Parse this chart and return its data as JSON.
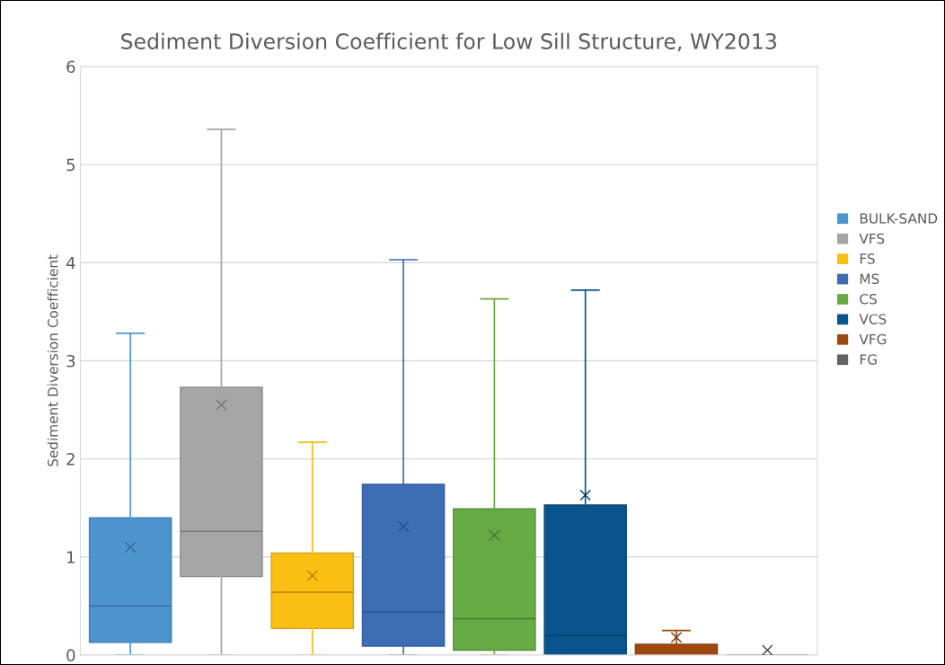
{
  "chart_data": {
    "type": "box",
    "title": "Sediment Diversion Coefficient for Low Sill Structure, WY2013",
    "ylabel": "Sediment Diversion Coefficient",
    "categories": [
      null
    ],
    "ylim": [
      0,
      6
    ],
    "yticks": [
      0,
      1,
      2,
      3,
      4,
      5,
      6
    ],
    "grid": "y",
    "legend": "right",
    "marker": "cross",
    "series": [
      {
        "name": "BULK-SAND",
        "color": "#4e95d0",
        "boxes": [
          {
            "low": 0,
            "q1": 0.13,
            "median": 0.5,
            "q3": 1.4,
            "high": 3.28,
            "mean": 1.1
          }
        ]
      },
      {
        "name": "VFS",
        "color": "#a5a5a5",
        "boxes": [
          {
            "low": 0,
            "q1": 0.8,
            "median": 1.26,
            "q3": 2.73,
            "high": 5.36,
            "mean": 2.55
          }
        ]
      },
      {
        "name": "FS",
        "color": "#fbbf14",
        "boxes": [
          {
            "low": 0,
            "q1": 0.27,
            "median": 0.64,
            "q3": 1.04,
            "high": 2.17,
            "mean": 0.81
          }
        ]
      },
      {
        "name": "MS",
        "color": "#3d6db5",
        "boxes": [
          {
            "low": 0,
            "q1": 0.09,
            "median": 0.44,
            "q3": 1.74,
            "high": 4.03,
            "mean": 1.31
          }
        ]
      },
      {
        "name": "CS",
        "color": "#66aa44",
        "boxes": [
          {
            "low": 0,
            "q1": 0.05,
            "median": 0.37,
            "q3": 1.49,
            "high": 3.63,
            "mean": 1.22
          }
        ]
      },
      {
        "name": "VCS",
        "color": "#08548c",
        "boxes": [
          {
            "low": 0,
            "q1": 0,
            "median": 0.2,
            "q3": 1.53,
            "high": 3.72,
            "mean": 1.63
          }
        ]
      },
      {
        "name": "VFG",
        "color": "#9e480e",
        "boxes": [
          {
            "low": 0,
            "q1": 0,
            "median": 0,
            "q3": 0.11,
            "high": 0.25,
            "mean": 0.18
          }
        ]
      },
      {
        "name": "FG",
        "color": "#636363",
        "boxes": [
          {
            "low": 0,
            "q1": 0,
            "median": 0,
            "q3": 0,
            "high": 0,
            "mean": 0.05
          }
        ]
      }
    ]
  }
}
